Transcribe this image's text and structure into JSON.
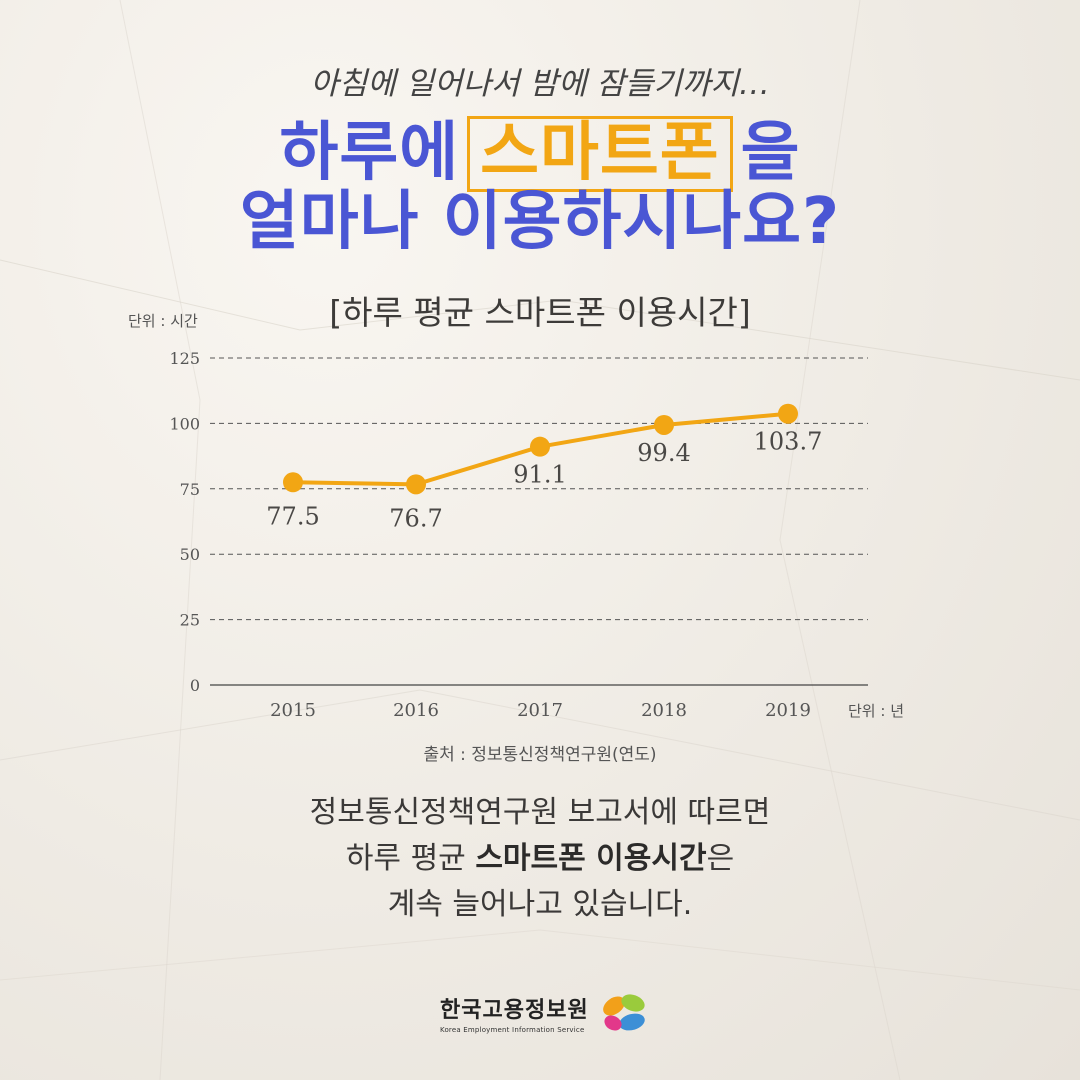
{
  "header": {
    "subtitle": "아침에 일어나서 밤에 잠들기까지…",
    "line1_prefix": "하루에",
    "line1_highlight": "스마트폰",
    "line1_suffix": "을",
    "line2": "얼마나 이용하시나요?"
  },
  "colors": {
    "headline": "#4a56d4",
    "accent": "#f2a614"
  },
  "chart_data": {
    "type": "line",
    "title": "[하루 평균 스마트폰 이용시간]",
    "y_unit_label": "단위 : 시간",
    "x_unit_label": "단위 : 년",
    "categories": [
      "2015",
      "2016",
      "2017",
      "2018",
      "2019"
    ],
    "series": [
      {
        "values": [
          77.5,
          76.7,
          91.1,
          99.4,
          103.7
        ],
        "color": "#f2a614"
      }
    ],
    "data_labels": [
      "77.5",
      "76.7",
      "91.1",
      "99.4",
      "103.7"
    ],
    "ylim": [
      0,
      125
    ],
    "yticks": [
      "0",
      "25",
      "50",
      "75",
      "100",
      "125"
    ],
    "grid": "dashed horizontal"
  },
  "source": "출처 : 정보통신정책연구원(연도)",
  "body": {
    "line1": "정보통신정책연구원 보고서에 따르면",
    "line2_prefix": "하루 평균 ",
    "line2_bold": "스마트폰 이용시간",
    "line2_suffix": "은",
    "line3": "계속 늘어나고 있습니다."
  },
  "logo": {
    "name": "한국고용정보원",
    "sub": "Korea Employment Information Service"
  }
}
